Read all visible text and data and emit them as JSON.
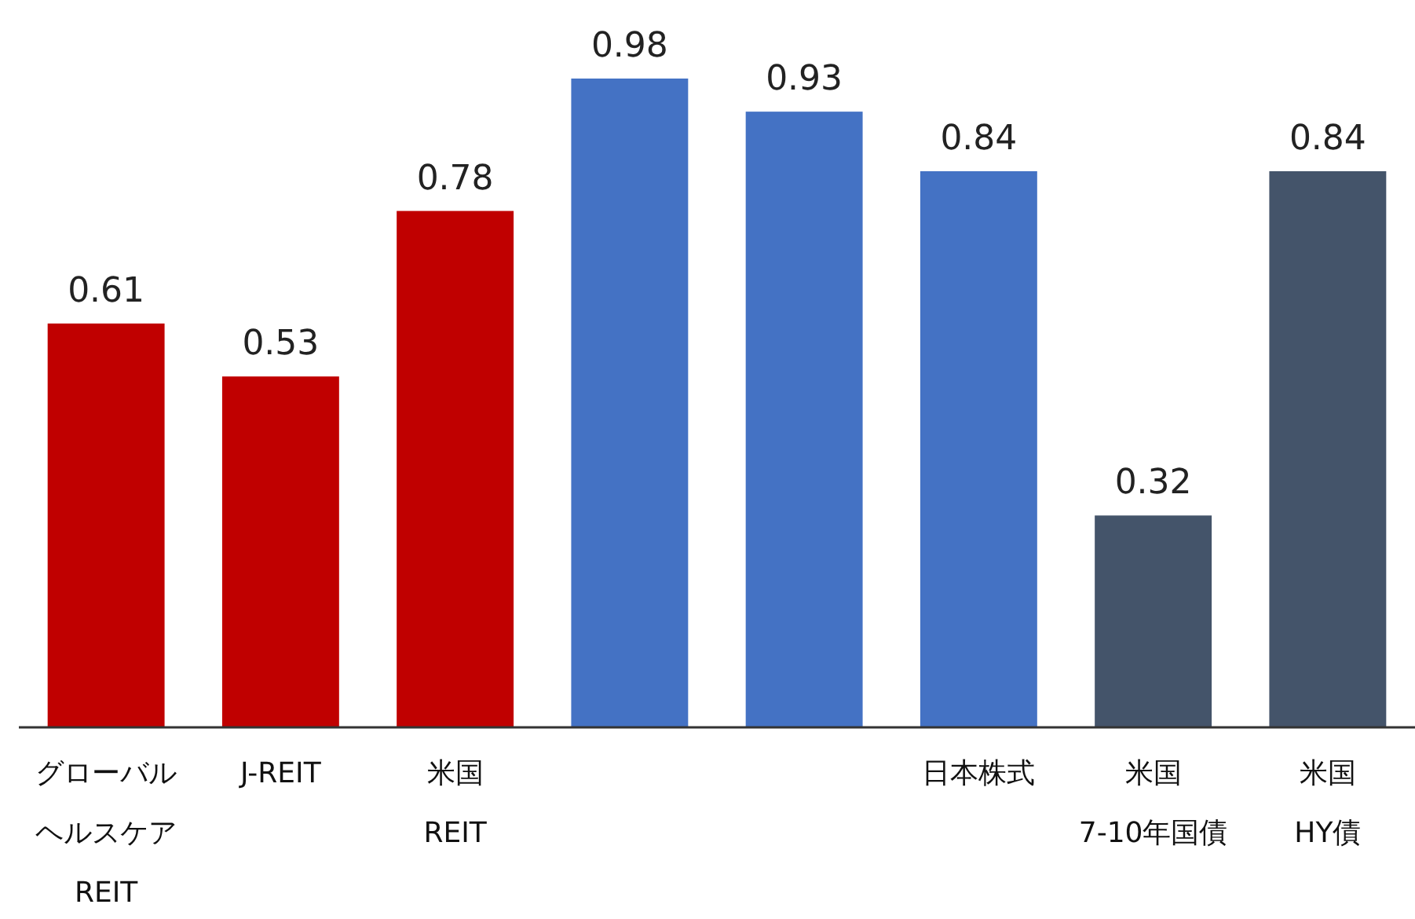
{
  "chart_data": {
    "type": "bar",
    "categories": [
      "グローバルヘルスケアREIT",
      "J-REIT",
      "米国REIT",
      null,
      null,
      "日本株式",
      "米国7-10年国債",
      "米国HY債"
    ],
    "values": [
      0.61,
      0.53,
      0.78,
      0.98,
      0.93,
      0.84,
      0.32,
      0.84
    ],
    "colors": [
      "#c00000",
      "#c00000",
      "#c00000",
      "#4472c4",
      "#4472c4",
      "#4472c4",
      "#44546a",
      "#44546a"
    ],
    "data_labels": true
  }
}
